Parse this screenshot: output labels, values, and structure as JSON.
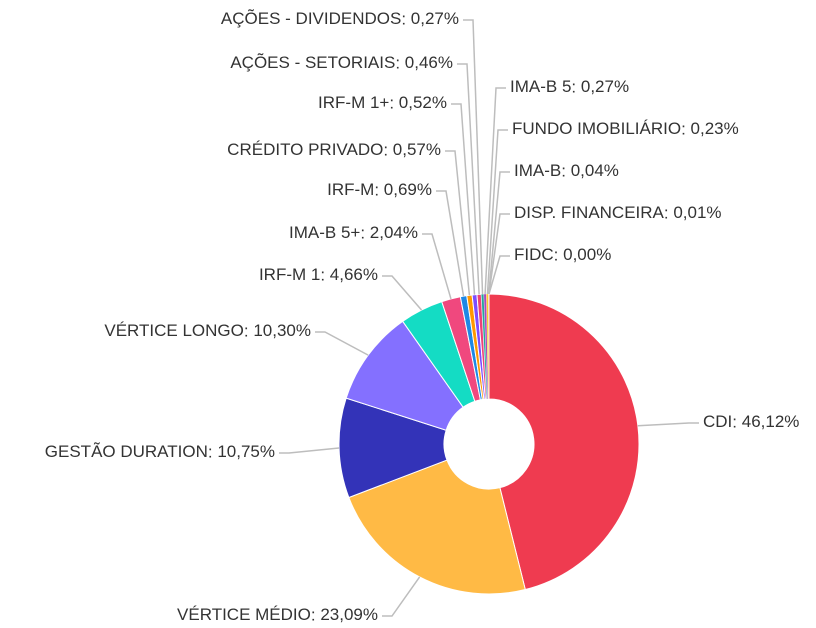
{
  "chart_data": {
    "type": "pie",
    "donut": true,
    "categories": [
      "CDI",
      "VÉRTICE MÉDIO",
      "GESTÃO DURATION",
      "VÉRTICE LONGO",
      "IRF-M 1",
      "IMA-B 5+",
      "IRF-M",
      "CRÉDITO PRIVADO",
      "IRF-M 1+",
      "AÇÕES - SETORIAIS",
      "AÇÕES - DIVIDENDOS",
      "IMA-B 5",
      "FUNDO IMOBILIÁRIO",
      "IMA-B",
      "DISP. FINANCEIRA",
      "FIDC"
    ],
    "values": [
      46.12,
      23.09,
      10.75,
      10.3,
      4.66,
      2.04,
      0.69,
      0.57,
      0.52,
      0.46,
      0.27,
      0.27,
      0.23,
      0.04,
      0.01,
      0.0
    ],
    "value_labels": [
      "46,12%",
      "23,09%",
      "10,75%",
      "10,30%",
      "4,66%",
      "2,04%",
      "0,69%",
      "0,57%",
      "0,52%",
      "0,46%",
      "0,27%",
      "0,27%",
      "0,23%",
      "0,04%",
      "0,01%",
      "0,00%"
    ],
    "colors": [
      "#ef3b50",
      "#ffba45",
      "#3333b8",
      "#8470ff",
      "#14dcc4",
      "#f0487e",
      "#1e88e5",
      "#ff9800",
      "#7c4dff",
      "#ec407a",
      "#26a69a",
      "#ab47bc",
      "#ffca28",
      "#42a5f5",
      "#66bb6a",
      "#9e9e9e"
    ]
  }
}
